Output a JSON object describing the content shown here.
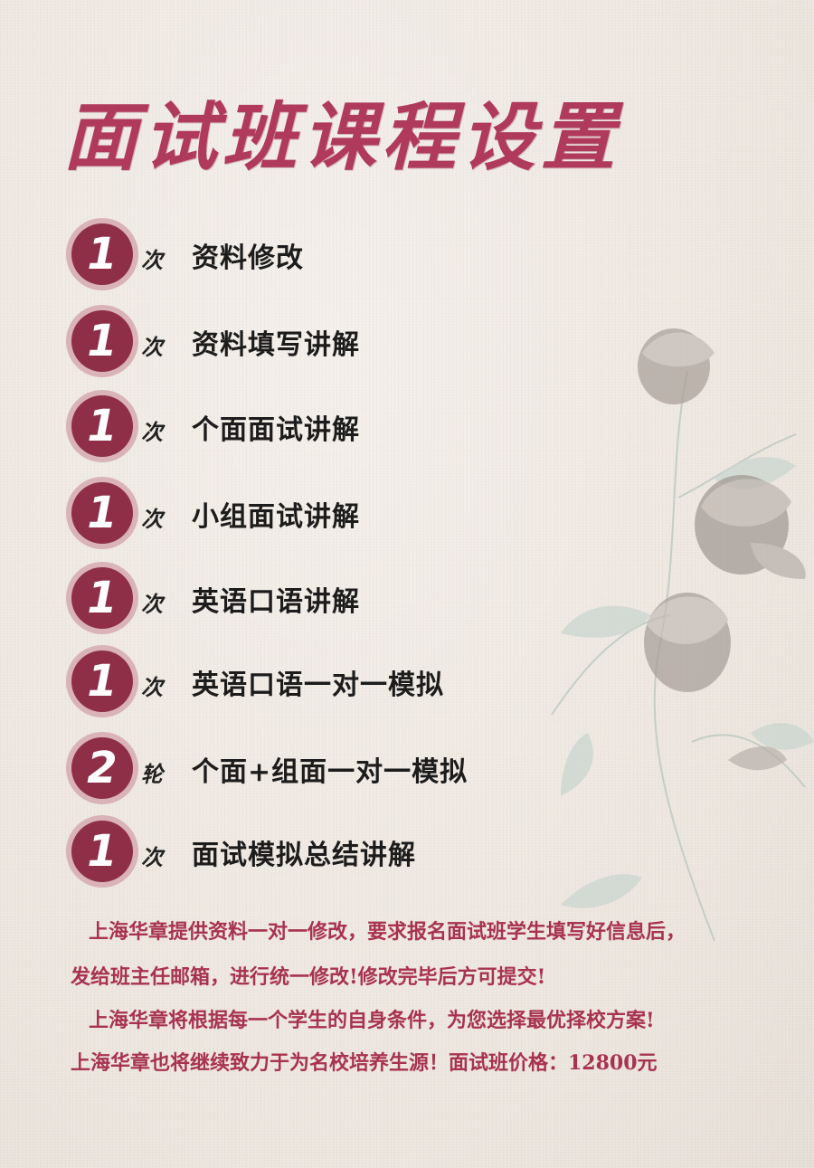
{
  "title": "面试班课程设置",
  "items": [
    {
      "count": "1",
      "unit": "次",
      "label": "资料修改"
    },
    {
      "count": "1",
      "unit": "次",
      "label": "资料填写讲解"
    },
    {
      "count": "1",
      "unit": "次",
      "label": "个面面试讲解"
    },
    {
      "count": "1",
      "unit": "次",
      "label": "小组面试讲解"
    },
    {
      "count": "1",
      "unit": "次",
      "label": "英语口语讲解"
    },
    {
      "count": "1",
      "unit": "次",
      "label": "英语口语一对一模拟"
    },
    {
      "count": "2",
      "unit": "轮",
      "label": "个面+组面一对一模拟"
    },
    {
      "count": "1",
      "unit": "次",
      "label": "面试模拟总结讲解"
    }
  ],
  "footer": {
    "line1": "上海华章提供资料一对一修改，要求报名面试班学生填写好信息后，",
    "line2": "发给班主任邮箱，进行统一修改!修改完毕后方可提交!",
    "line3": "上海华章将根据每一个学生的自身条件，为您选择最优择校方案!",
    "line4": "上海华章也将继续致力于为名校培养生源！面试班价格：12800元"
  },
  "colors": {
    "accent": "#b03a5b",
    "badge": "#8e2f47",
    "text": "#1c1c1c",
    "footer": "#a8334f",
    "background": "#efe9e3"
  },
  "icons": {
    "badge": "scalloped-circle-badge",
    "decoration": "rose-flower-illustration"
  }
}
